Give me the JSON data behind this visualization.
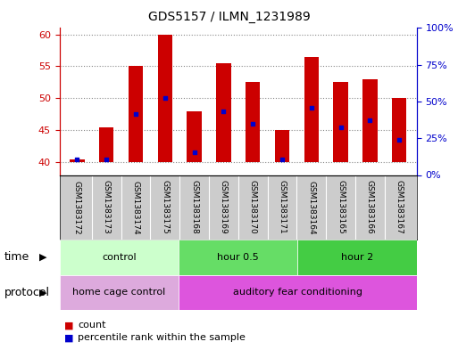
{
  "title": "GDS5157 / ILMN_1231989",
  "samples": [
    "GSM1383172",
    "GSM1383173",
    "GSM1383174",
    "GSM1383175",
    "GSM1383168",
    "GSM1383169",
    "GSM1383170",
    "GSM1383171",
    "GSM1383164",
    "GSM1383165",
    "GSM1383166",
    "GSM1383167"
  ],
  "bar_bottoms": [
    40,
    40,
    40,
    40,
    40,
    40,
    40,
    40,
    40,
    40,
    40,
    40
  ],
  "bar_tops": [
    40.4,
    45.5,
    55.0,
    60.0,
    48.0,
    55.5,
    52.5,
    45.0,
    56.5,
    52.5,
    53.0,
    50.0
  ],
  "percentile_values": [
    40.5,
    40.5,
    47.5,
    50.0,
    41.5,
    48.0,
    46.0,
    40.5,
    48.5,
    45.5,
    46.5,
    43.5
  ],
  "ylim_left": [
    38,
    61
  ],
  "ylim_right": [
    0,
    100
  ],
  "yticks_left": [
    40,
    45,
    50,
    55,
    60
  ],
  "yticks_right": [
    0,
    25,
    50,
    75,
    100
  ],
  "yticklabels_right": [
    "0%",
    "25%",
    "50%",
    "75%",
    "100%"
  ],
  "bar_color": "#cc0000",
  "dot_color": "#0000cc",
  "time_groups": [
    {
      "label": "control",
      "start": 0,
      "end": 4,
      "color": "#ccffcc"
    },
    {
      "label": "hour 0.5",
      "start": 4,
      "end": 8,
      "color": "#66dd66"
    },
    {
      "label": "hour 2",
      "start": 8,
      "end": 12,
      "color": "#44cc44"
    }
  ],
  "protocol_groups": [
    {
      "label": "home cage control",
      "start": 0,
      "end": 4,
      "color": "#ddaadd"
    },
    {
      "label": "auditory fear conditioning",
      "start": 4,
      "end": 12,
      "color": "#dd55dd"
    }
  ],
  "legend_count_color": "#cc0000",
  "legend_dot_color": "#0000cc",
  "bg_color": "#ffffff",
  "plot_bg_color": "#ffffff",
  "grid_color": "#888888",
  "left_axis_color": "#cc0000",
  "right_axis_color": "#0000cc",
  "sample_bg_color": "#cccccc",
  "bar_width": 0.5
}
